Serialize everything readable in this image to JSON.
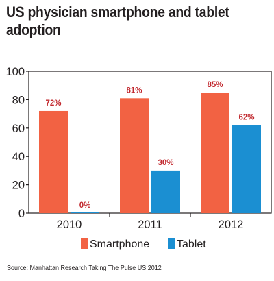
{
  "title": "US physician smartphone and tablet adoption",
  "source": "Source: Manhattan Research Taking The Pulse US 2012",
  "chart_data": {
    "type": "bar",
    "categories": [
      "2010",
      "2011",
      "2012"
    ],
    "series": [
      {
        "name": "Smartphone",
        "values": [
          72,
          81,
          85
        ],
        "color": "#f26243",
        "labels": [
          "72%",
          "81%",
          "85%"
        ],
        "label_color": "#c1272d"
      },
      {
        "name": "Tablet",
        "values": [
          0,
          30,
          62
        ],
        "color": "#1b8fd2",
        "labels": [
          "0%",
          "30%",
          "62%"
        ],
        "label_color": "#c1272d"
      }
    ],
    "ylim": [
      0,
      100
    ],
    "yticks": [
      0,
      20,
      40,
      60,
      80,
      100
    ],
    "grid": false,
    "legend": "bottom"
  }
}
